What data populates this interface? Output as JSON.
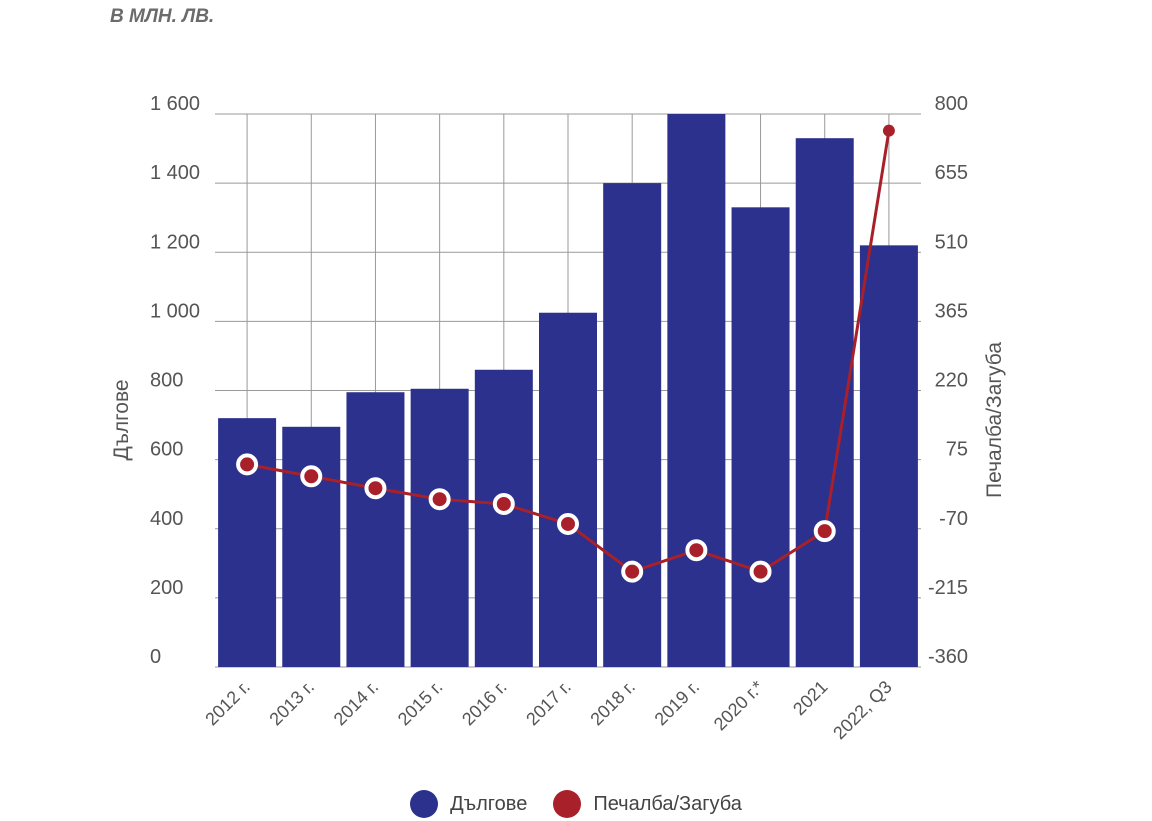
{
  "unit_label": "В МЛН. ЛВ.",
  "colors": {
    "bar": "#2b318c",
    "line": "#a8202a",
    "grid": "#999999"
  },
  "legend": [
    {
      "label": "Дългове",
      "color": "#2b318c"
    },
    {
      "label": "Печалба/Загуба",
      "color": "#a8202a"
    }
  ],
  "chart_data": {
    "type": "bar+line",
    "title": "",
    "categories": [
      "2012 г.",
      "2013 г.",
      "2014 г.",
      "2015 г.",
      "2016 г.",
      "2017 г.",
      "2018 г.",
      "2019 г.",
      "2020 г.*",
      "2021",
      "2022, Q3"
    ],
    "ylabel": "Дългове",
    "y2label": "Печалба/Загуба",
    "ylim": [
      0,
      1600
    ],
    "yticks": [
      0,
      200,
      400,
      600,
      800,
      1000,
      1200,
      1400,
      1600
    ],
    "ytick_labels": [
      "0",
      "200",
      "400",
      "600",
      "800",
      "1 000",
      "1 200",
      "1 400",
      "1 600"
    ],
    "y2lim": [
      -360,
      800
    ],
    "y2ticks": [
      -360,
      -215,
      -70,
      75,
      220,
      365,
      510,
      655,
      800
    ],
    "y2tick_labels": [
      "-360",
      "-215",
      "-70",
      "75",
      "220",
      "365",
      "510",
      "655",
      "800"
    ],
    "series": [
      {
        "name": "Дългове",
        "type": "bar",
        "axis": "left",
        "values": [
          720,
          695,
          795,
          805,
          860,
          1025,
          1400,
          1600,
          1330,
          1530,
          1220
        ]
      },
      {
        "name": "Печалба/Загуба",
        "type": "line",
        "axis": "right",
        "values": [
          65,
          40,
          15,
          -8,
          -18,
          -60,
          -160,
          -115,
          -160,
          -75,
          765
        ]
      }
    ],
    "grid": true,
    "legend_position": "bottom-center"
  }
}
